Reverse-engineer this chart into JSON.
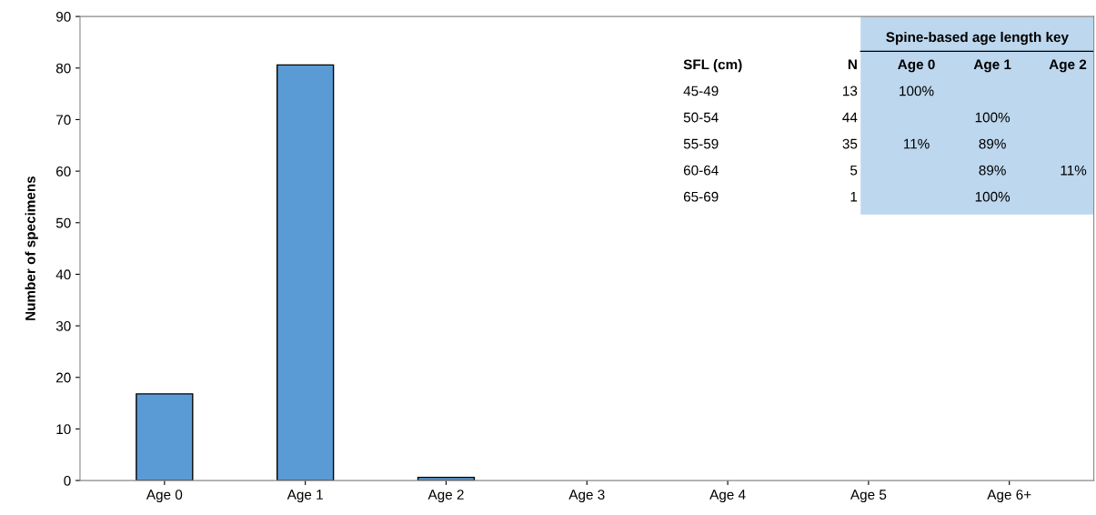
{
  "chart_data": {
    "type": "bar",
    "ylabel": "Number of specimens",
    "categories": [
      "Age 0",
      "Age 1",
      "Age 2",
      "Age 3",
      "Age 4",
      "Age 5",
      "Age 6+"
    ],
    "values": [
      16.8,
      80.6,
      0.6,
      0,
      0,
      0,
      0
    ],
    "color": "#5b9bd5",
    "ylim": [
      0,
      90
    ],
    "yticks": [
      0,
      10,
      20,
      30,
      40,
      50,
      60,
      70,
      80,
      90
    ],
    "grid": false,
    "annotations": [
      "Spine-based age length key",
      "SFL (cm)\tN\tAge 0\tAge 1\tAge 2",
      "45-49\t13\t100%\t\t",
      "50-54\t44\t\t100%\t",
      "55-59\t35\t11%\t89%\t",
      "60-64\t5\t\t89%\t11%",
      "65-69\t1\t\t100%\t"
    ]
  }
}
